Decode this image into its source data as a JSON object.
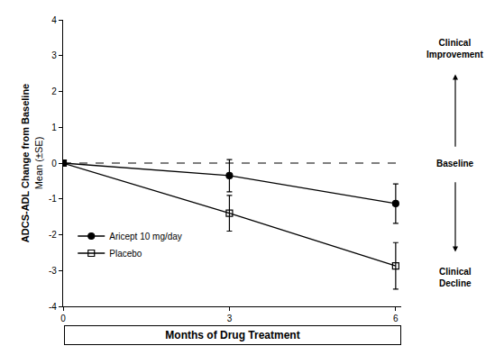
{
  "chart_data": {
    "type": "line",
    "x_label": "Months of Drug Treatment",
    "y_label": [
      "ADCS-ADL Change from Baseline",
      "Mean (±SE)"
    ],
    "x": [
      0,
      3,
      6
    ],
    "xlim": [
      0,
      6.1
    ],
    "xticks": [
      0,
      3,
      6
    ],
    "ylim": [
      -4,
      4
    ],
    "yticks": [
      -4,
      -3,
      -2,
      -1,
      0,
      1,
      2,
      3,
      4
    ],
    "grid": false,
    "legend": "lower left",
    "series": [
      {
        "name": "Aricept 10 mg/day",
        "color": "#000000",
        "marker": "circle",
        "line_style": "solid",
        "values": [
          0,
          -0.35,
          -1.13
        ],
        "errors": [
          null,
          0.45,
          0.55
        ]
      },
      {
        "name": "Placebo",
        "color": "#000000",
        "marker": "square-open",
        "line_style": "solid",
        "values": [
          0,
          -1.4,
          -2.87
        ],
        "errors": [
          null,
          0.5,
          0.65
        ]
      }
    ],
    "annotations": [
      {
        "text": "Clinical Improvement"
      },
      {
        "text": "Baseline",
        "y": 0
      },
      {
        "text": "Clinical Decline"
      }
    ]
  }
}
